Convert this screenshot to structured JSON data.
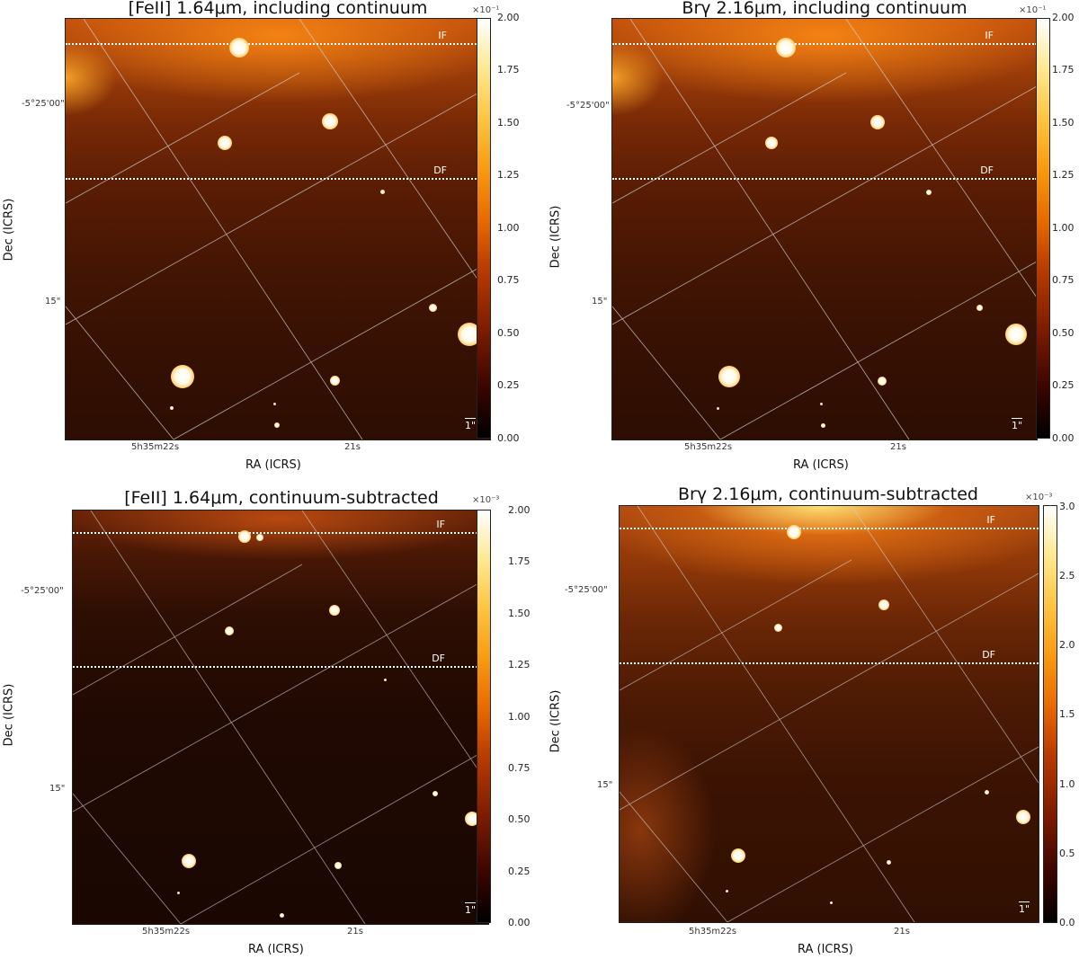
{
  "panels": [
    {
      "title": "[FeII] 1.64μm, including continuum",
      "if_label": "IF",
      "df_label": "DF",
      "scale_label": "1\"",
      "xlabel": "RA (ICRS)",
      "ylabel": "Dec (ICRS)",
      "ra_ticks": [
        "5h35m22s",
        "21s"
      ],
      "dec_ticks": [
        "-5°25'00\"",
        "15\""
      ],
      "cbar_exp": "×10⁻¹",
      "cbar_ticks": [
        "2.00",
        "1.75",
        "1.50",
        "1.25",
        "1.00",
        "0.75",
        "0.50",
        "0.25",
        "0.00"
      ]
    },
    {
      "title": "Brγ 2.16μm, including continuum",
      "if_label": "IF",
      "df_label": "DF",
      "scale_label": "1\"",
      "xlabel": "RA (ICRS)",
      "ylabel": "Dec (ICRS)",
      "ra_ticks": [
        "5h35m22s",
        "21s"
      ],
      "dec_ticks": [
        "-5°25'00\"",
        "15\""
      ],
      "cbar_exp": "×10⁻¹",
      "cbar_ticks": [
        "2.00",
        "1.75",
        "1.50",
        "1.25",
        "1.00",
        "0.75",
        "0.50",
        "0.25",
        "0.00"
      ]
    },
    {
      "title": "[FeII] 1.64μm, continuum-subtracted",
      "if_label": "IF",
      "df_label": "DF",
      "scale_label": "1\"",
      "xlabel": "RA (ICRS)",
      "ylabel": "Dec (ICRS)",
      "ra_ticks": [
        "5h35m22s",
        "21s"
      ],
      "dec_ticks": [
        "-5°25'00\"",
        "15\""
      ],
      "cbar_exp": "×10⁻³",
      "cbar_ticks": [
        "2.00",
        "1.75",
        "1.50",
        "1.25",
        "1.00",
        "0.75",
        "0.50",
        "0.25",
        "0.00"
      ]
    },
    {
      "title": "Brγ 2.16μm, continuum-subtracted",
      "if_label": "IF",
      "df_label": "DF",
      "scale_label": "1\"",
      "xlabel": "RA (ICRS)",
      "ylabel": "Dec (ICRS)",
      "ra_ticks": [
        "5h35m22s",
        "21s"
      ],
      "dec_ticks": [
        "-5°25'00\"",
        "15\""
      ],
      "cbar_exp": "×10⁻³",
      "cbar_ticks": [
        "3.0",
        "2.5",
        "2.0",
        "1.5",
        "1.0",
        "0.5",
        "0.0"
      ]
    }
  ]
}
